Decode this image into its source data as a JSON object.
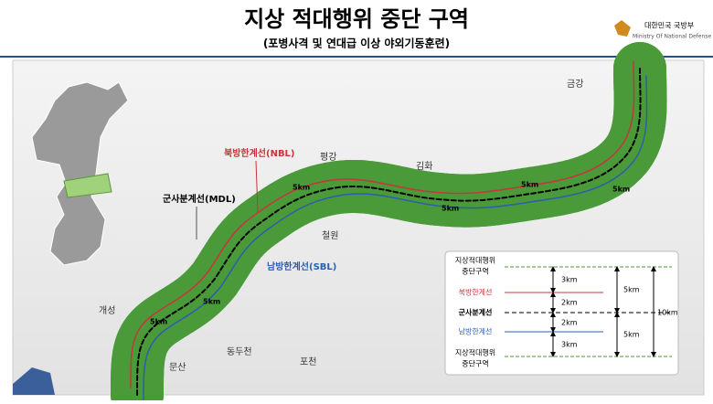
{
  "header": {
    "title": "지상 적대행위 중단 구역",
    "subtitle": "(포병사격 및 연대급 이상 야외기동훈련)",
    "logo": {
      "name": "대한민국 국방부",
      "name_en": "Ministry Of National Defense"
    }
  },
  "map": {
    "places": [
      "금강",
      "평강",
      "김화",
      "철원",
      "개성",
      "동두천",
      "문산",
      "포천"
    ],
    "lines": {
      "nbl": "북방한계선(NBL)",
      "mdl": "군사분계선(MDL)",
      "sbl": "남방한계선(SBL)"
    },
    "distance_labels": [
      "5km",
      "5km",
      "5km",
      "5km",
      "5km",
      "5km"
    ]
  },
  "legend": {
    "zone_top": [
      "지상적대행위",
      "중단구역"
    ],
    "nbl": "북방한계선",
    "mdl": "군사분계선",
    "sbl": "남방한계선",
    "zone_bottom": [
      "지상적대행위",
      "중단구역"
    ],
    "segments": [
      "3km",
      "2km",
      "2km",
      "3km"
    ],
    "halves": [
      "5km",
      "5km"
    ],
    "total": "10km"
  }
}
